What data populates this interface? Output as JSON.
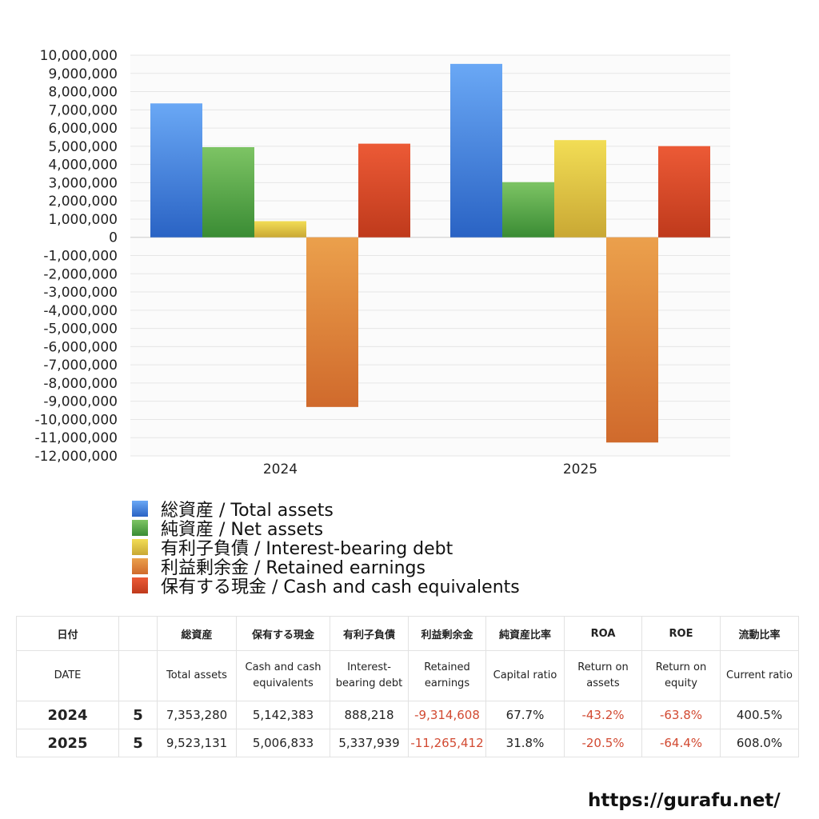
{
  "chart_data": {
    "type": "bar",
    "categories": [
      "2024",
      "2025"
    ],
    "series": [
      {
        "name": "総資産 / Total assets",
        "values": [
          7353280,
          9523131
        ],
        "color": "#3f7fe0"
      },
      {
        "name": "純資産 / Net assets",
        "values": [
          4950000,
          3030000
        ],
        "color": "#52a844"
      },
      {
        "name": "有利子負債 / Interest-bearing debt",
        "values": [
          888218,
          5337939
        ],
        "color": "#e3c93c"
      },
      {
        "name": "利益剰余金 / Retained earnings",
        "values": [
          -9314608,
          -11265412
        ],
        "color": "#e2883a"
      },
      {
        "name": "保有する現金 /  Cash and cash equivalents",
        "values": [
          5142383,
          5006833
        ],
        "color": "#dd4626"
      }
    ],
    "ylim": [
      -12000000,
      10000000
    ],
    "ytick_step": 1000000,
    "grid": true,
    "legend_position": "bottom-left"
  },
  "yticks": [
    "10,000,000",
    "9,000,000",
    "8,000,000",
    "7,000,000",
    "6,000,000",
    "5,000,000",
    "4,000,000",
    "3,000,000",
    "2,000,000",
    "1,000,000",
    "0",
    "-1,000,000",
    "-2,000,000",
    "-3,000,000",
    "-4,000,000",
    "-5,000,000",
    "-6,000,000",
    "-7,000,000",
    "-8,000,000",
    "-9,000,000",
    "-10,000,000",
    "-11,000,000",
    "-12,000,000"
  ],
  "table": {
    "headers_ja": [
      "日付",
      "",
      "総資産",
      "保有する現金",
      "有利子負債",
      "利益剰余金",
      "純資産比率",
      "ROA",
      "ROE",
      "流動比率"
    ],
    "headers_en": [
      "DATE",
      "",
      "Total assets",
      "Cash and cash equivalents",
      "Interest-bearing debt",
      "Retained earnings",
      "Capital ratio",
      "Return on assets",
      "Return on equity",
      "Current ratio"
    ],
    "rows": [
      {
        "year": "2024",
        "month": "5",
        "total_assets": "7,353,280",
        "cash": "5,142,383",
        "debt": "888,218",
        "retained": "-9,314,608",
        "capital_ratio": "67.7%",
        "roa": "-43.2%",
        "roe": "-63.8%",
        "current_ratio": "400.5%"
      },
      {
        "year": "2025",
        "month": "5",
        "total_assets": "9,523,131",
        "cash": "5,006,833",
        "debt": "5,337,939",
        "retained": "-11,265,412",
        "capital_ratio": "31.8%",
        "roa": "-20.5%",
        "roe": "-64.4%",
        "current_ratio": "608.0%"
      }
    ]
  },
  "site_url": "https://gurafu.net/"
}
